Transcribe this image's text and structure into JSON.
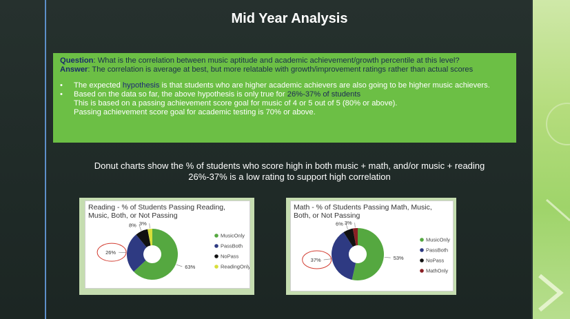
{
  "slide": {
    "title": "Mid Year Analysis",
    "question_label": "Question",
    "question_text": ": What is the correlation between music aptitude and academic achievement/growth percentile at this level?",
    "answer_label": "Answer",
    "answer_text": ": The correlation is average at best, but more relatable with growth/improvement ratings rather than actual scores",
    "bullet1_pre": "The expected ",
    "bullet1_hl": "hypothesis",
    "bullet1_post": " is that students who are higher academic achievers are also going to be higher music achievers.",
    "bullet2_pre": "Based on the data so far, the above hypothesis is only true for ",
    "bullet2_hl": "26%-37% of students",
    "bullet2_line2": "This is based on a passing achievement score goal for music of 4 or 5 out of 5 (80% or above).",
    "bullet2_line3": "Passing achievement score goal for academic testing is 70% or above.",
    "subtitle_line1": "Donut charts show the % of students who score high in both music + math, and/or music + reading",
    "subtitle_line2": "26%-37% is a low rating to support high correlation"
  },
  "colors": {
    "green": "#55a840",
    "navy": "#2e3a82",
    "black": "#111111",
    "yellow": "#d8de3a",
    "maroon": "#8a1f24",
    "highlight_circle": "#d23a2e"
  },
  "chart_data": [
    {
      "type": "pie",
      "title": "Reading - % of Students Passing Reading, Music, Both, or Not Passing",
      "series": [
        {
          "name": "MusicOnly",
          "value": 63,
          "label": "63%",
          "color": "#55a840"
        },
        {
          "name": "PassBoth",
          "value": 26,
          "label": "26%",
          "color": "#2e3a82"
        },
        {
          "name": "NoPass",
          "value": 8,
          "label": "8%",
          "color": "#111111"
        },
        {
          "name": "ReadingOnly",
          "value": 3,
          "label": "3%",
          "color": "#d8de3a"
        }
      ]
    },
    {
      "type": "pie",
      "title": "Math - % of Students Passing Math, Music, Both, or Not Passing",
      "series": [
        {
          "name": "MusicOnly",
          "value": 53,
          "label": "53%",
          "color": "#55a840"
        },
        {
          "name": "PassBoth",
          "value": 37,
          "label": "37%",
          "color": "#2e3a82"
        },
        {
          "name": "NoPass",
          "value": 6,
          "label": "6%",
          "color": "#111111"
        },
        {
          "name": "MathOnly",
          "value": 3,
          "label": "3%",
          "color": "#8a1f24"
        }
      ]
    }
  ]
}
